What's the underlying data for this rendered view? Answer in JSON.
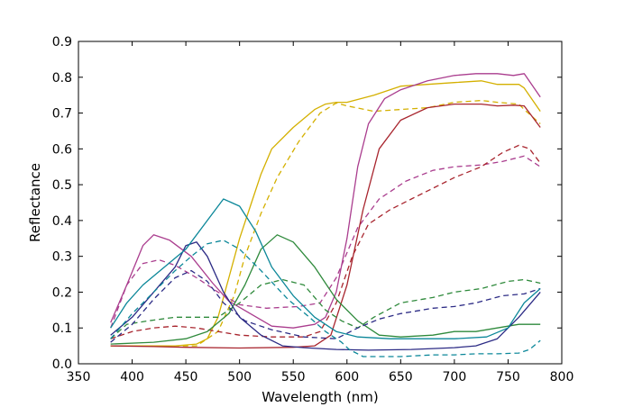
{
  "chart_data": {
    "type": "line",
    "title": "",
    "xlabel": "Wavelength (nm)",
    "ylabel": "Reflectance",
    "xlim": [
      350,
      800
    ],
    "ylim": [
      0.0,
      0.9
    ],
    "xticks": [
      "350",
      "400",
      "450",
      "500",
      "550",
      "600",
      "650",
      "700",
      "750",
      "800"
    ],
    "yticks": [
      "0.0",
      "0.1",
      "0.2",
      "0.3",
      "0.4",
      "0.5",
      "0.6",
      "0.7",
      "0.8",
      "0.9"
    ],
    "grid": false,
    "legend": "none",
    "series": [
      {
        "color": "#d4b000",
        "dash": false,
        "points": [
          [
            380,
            0.05
          ],
          [
            400,
            0.05
          ],
          [
            440,
            0.05
          ],
          [
            460,
            0.055
          ],
          [
            470,
            0.07
          ],
          [
            480,
            0.13
          ],
          [
            490,
            0.24
          ],
          [
            500,
            0.35
          ],
          [
            510,
            0.44
          ],
          [
            520,
            0.53
          ],
          [
            530,
            0.6
          ],
          [
            550,
            0.66
          ],
          [
            570,
            0.71
          ],
          [
            580,
            0.725
          ],
          [
            590,
            0.73
          ],
          [
            600,
            0.73
          ],
          [
            625,
            0.75
          ],
          [
            650,
            0.775
          ],
          [
            675,
            0.78
          ],
          [
            700,
            0.785
          ],
          [
            725,
            0.79
          ],
          [
            740,
            0.78
          ],
          [
            760,
            0.78
          ],
          [
            765,
            0.77
          ],
          [
            780,
            0.705
          ]
        ]
      },
      {
        "color": "#d4b000",
        "dash": true,
        "points": [
          [
            380,
            0.05
          ],
          [
            420,
            0.05
          ],
          [
            460,
            0.05
          ],
          [
            480,
            0.09
          ],
          [
            495,
            0.19
          ],
          [
            505,
            0.3
          ],
          [
            520,
            0.42
          ],
          [
            535,
            0.52
          ],
          [
            555,
            0.62
          ],
          [
            575,
            0.7
          ],
          [
            590,
            0.728
          ],
          [
            600,
            0.72
          ],
          [
            625,
            0.705
          ],
          [
            650,
            0.71
          ],
          [
            675,
            0.715
          ],
          [
            700,
            0.73
          ],
          [
            725,
            0.735
          ],
          [
            740,
            0.73
          ],
          [
            760,
            0.725
          ],
          [
            765,
            0.71
          ],
          [
            780,
            0.67
          ]
        ]
      },
      {
        "color": "#aa3d8e",
        "dash": false,
        "points": [
          [
            380,
            0.115
          ],
          [
            395,
            0.22
          ],
          [
            410,
            0.33
          ],
          [
            420,
            0.36
          ],
          [
            435,
            0.345
          ],
          [
            455,
            0.3
          ],
          [
            475,
            0.225
          ],
          [
            490,
            0.175
          ],
          [
            510,
            0.14
          ],
          [
            530,
            0.105
          ],
          [
            550,
            0.1
          ],
          [
            570,
            0.11
          ],
          [
            580,
            0.13
          ],
          [
            590,
            0.2
          ],
          [
            600,
            0.35
          ],
          [
            610,
            0.55
          ],
          [
            620,
            0.67
          ],
          [
            635,
            0.74
          ],
          [
            650,
            0.765
          ],
          [
            675,
            0.79
          ],
          [
            700,
            0.805
          ],
          [
            720,
            0.81
          ],
          [
            740,
            0.81
          ],
          [
            755,
            0.805
          ],
          [
            765,
            0.81
          ],
          [
            780,
            0.745
          ]
        ]
      },
      {
        "color": "#aa3d8e",
        "dash": true,
        "points": [
          [
            380,
            0.1
          ],
          [
            395,
            0.22
          ],
          [
            410,
            0.28
          ],
          [
            425,
            0.29
          ],
          [
            440,
            0.275
          ],
          [
            460,
            0.24
          ],
          [
            480,
            0.2
          ],
          [
            500,
            0.165
          ],
          [
            525,
            0.155
          ],
          [
            555,
            0.16
          ],
          [
            575,
            0.17
          ],
          [
            590,
            0.24
          ],
          [
            610,
            0.38
          ],
          [
            630,
            0.46
          ],
          [
            655,
            0.51
          ],
          [
            680,
            0.54
          ],
          [
            700,
            0.55
          ],
          [
            725,
            0.555
          ],
          [
            745,
            0.565
          ],
          [
            765,
            0.58
          ],
          [
            780,
            0.55
          ]
        ]
      },
      {
        "color": "#a8252e",
        "dash": false,
        "points": [
          [
            380,
            0.05
          ],
          [
            420,
            0.048
          ],
          [
            450,
            0.046
          ],
          [
            500,
            0.044
          ],
          [
            550,
            0.046
          ],
          [
            570,
            0.05
          ],
          [
            585,
            0.08
          ],
          [
            600,
            0.22
          ],
          [
            615,
            0.43
          ],
          [
            630,
            0.6
          ],
          [
            650,
            0.68
          ],
          [
            675,
            0.715
          ],
          [
            700,
            0.725
          ],
          [
            725,
            0.725
          ],
          [
            740,
            0.72
          ],
          [
            755,
            0.722
          ],
          [
            765,
            0.72
          ],
          [
            780,
            0.66
          ]
        ]
      },
      {
        "color": "#a8252e",
        "dash": true,
        "points": [
          [
            380,
            0.07
          ],
          [
            400,
            0.09
          ],
          [
            420,
            0.1
          ],
          [
            440,
            0.105
          ],
          [
            460,
            0.1
          ],
          [
            480,
            0.09
          ],
          [
            500,
            0.08
          ],
          [
            530,
            0.075
          ],
          [
            560,
            0.075
          ],
          [
            575,
            0.09
          ],
          [
            590,
            0.17
          ],
          [
            605,
            0.3
          ],
          [
            620,
            0.39
          ],
          [
            640,
            0.43
          ],
          [
            660,
            0.46
          ],
          [
            680,
            0.49
          ],
          [
            700,
            0.52
          ],
          [
            725,
            0.55
          ],
          [
            745,
            0.59
          ],
          [
            760,
            0.61
          ],
          [
            770,
            0.6
          ],
          [
            780,
            0.56
          ]
        ]
      },
      {
        "color": "#2f8a3c",
        "dash": false,
        "points": [
          [
            380,
            0.055
          ],
          [
            420,
            0.06
          ],
          [
            450,
            0.07
          ],
          [
            470,
            0.09
          ],
          [
            490,
            0.14
          ],
          [
            505,
            0.22
          ],
          [
            520,
            0.32
          ],
          [
            535,
            0.36
          ],
          [
            550,
            0.34
          ],
          [
            570,
            0.27
          ],
          [
            590,
            0.18
          ],
          [
            610,
            0.12
          ],
          [
            630,
            0.08
          ],
          [
            650,
            0.075
          ],
          [
            680,
            0.08
          ],
          [
            700,
            0.09
          ],
          [
            720,
            0.09
          ],
          [
            740,
            0.1
          ],
          [
            760,
            0.11
          ],
          [
            780,
            0.11
          ]
        ]
      },
      {
        "color": "#2f8a3c",
        "dash": true,
        "points": [
          [
            380,
            0.07
          ],
          [
            395,
            0.11
          ],
          [
            415,
            0.12
          ],
          [
            440,
            0.13
          ],
          [
            460,
            0.13
          ],
          [
            480,
            0.13
          ],
          [
            500,
            0.17
          ],
          [
            520,
            0.22
          ],
          [
            540,
            0.235
          ],
          [
            560,
            0.22
          ],
          [
            580,
            0.15
          ],
          [
            595,
            0.12
          ],
          [
            610,
            0.1
          ],
          [
            625,
            0.13
          ],
          [
            650,
            0.17
          ],
          [
            680,
            0.185
          ],
          [
            700,
            0.2
          ],
          [
            725,
            0.21
          ],
          [
            750,
            0.23
          ],
          [
            765,
            0.235
          ],
          [
            780,
            0.225
          ]
        ]
      },
      {
        "color": "#2c2b85",
        "dash": false,
        "points": [
          [
            380,
            0.08
          ],
          [
            400,
            0.13
          ],
          [
            420,
            0.2
          ],
          [
            440,
            0.27
          ],
          [
            450,
            0.33
          ],
          [
            460,
            0.34
          ],
          [
            470,
            0.3
          ],
          [
            485,
            0.2
          ],
          [
            500,
            0.13
          ],
          [
            520,
            0.08
          ],
          [
            540,
            0.05
          ],
          [
            560,
            0.045
          ],
          [
            590,
            0.04
          ],
          [
            620,
            0.038
          ],
          [
            660,
            0.04
          ],
          [
            700,
            0.045
          ],
          [
            720,
            0.05
          ],
          [
            740,
            0.07
          ],
          [
            760,
            0.13
          ],
          [
            780,
            0.2
          ]
        ]
      },
      {
        "color": "#2c2b85",
        "dash": true,
        "points": [
          [
            380,
            0.06
          ],
          [
            400,
            0.11
          ],
          [
            420,
            0.18
          ],
          [
            440,
            0.24
          ],
          [
            455,
            0.26
          ],
          [
            470,
            0.23
          ],
          [
            485,
            0.17
          ],
          [
            505,
            0.12
          ],
          [
            530,
            0.095
          ],
          [
            560,
            0.075
          ],
          [
            590,
            0.07
          ],
          [
            610,
            0.1
          ],
          [
            630,
            0.125
          ],
          [
            650,
            0.14
          ],
          [
            680,
            0.155
          ],
          [
            700,
            0.16
          ],
          [
            720,
            0.17
          ],
          [
            745,
            0.19
          ],
          [
            765,
            0.195
          ],
          [
            780,
            0.21
          ]
        ]
      },
      {
        "color": "#0b8799",
        "dash": false,
        "points": [
          [
            380,
            0.1
          ],
          [
            395,
            0.17
          ],
          [
            410,
            0.22
          ],
          [
            430,
            0.27
          ],
          [
            450,
            0.32
          ],
          [
            470,
            0.4
          ],
          [
            485,
            0.46
          ],
          [
            500,
            0.44
          ],
          [
            515,
            0.37
          ],
          [
            530,
            0.27
          ],
          [
            550,
            0.19
          ],
          [
            570,
            0.13
          ],
          [
            590,
            0.09
          ],
          [
            610,
            0.075
          ],
          [
            640,
            0.07
          ],
          [
            670,
            0.07
          ],
          [
            700,
            0.07
          ],
          [
            730,
            0.075
          ],
          [
            750,
            0.1
          ],
          [
            765,
            0.17
          ],
          [
            780,
            0.21
          ]
        ]
      },
      {
        "color": "#0b8799",
        "dash": true,
        "points": [
          [
            380,
            0.07
          ],
          [
            400,
            0.14
          ],
          [
            420,
            0.2
          ],
          [
            440,
            0.26
          ],
          [
            455,
            0.3
          ],
          [
            470,
            0.335
          ],
          [
            485,
            0.345
          ],
          [
            500,
            0.32
          ],
          [
            520,
            0.26
          ],
          [
            545,
            0.18
          ],
          [
            565,
            0.13
          ],
          [
            580,
            0.09
          ],
          [
            595,
            0.06
          ],
          [
            602,
            0.04
          ],
          [
            615,
            0.02
          ],
          [
            650,
            0.02
          ],
          [
            680,
            0.025
          ],
          [
            700,
            0.025
          ],
          [
            720,
            0.028
          ],
          [
            740,
            0.028
          ],
          [
            760,
            0.03
          ],
          [
            770,
            0.04
          ],
          [
            780,
            0.065
          ]
        ]
      }
    ]
  }
}
